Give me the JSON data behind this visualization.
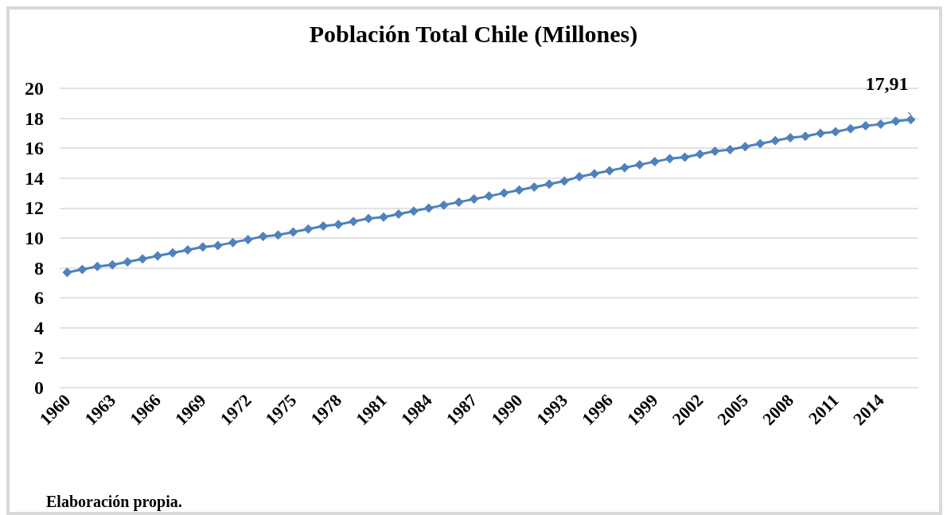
{
  "chart_data": {
    "type": "line",
    "title": "Población Total Chile (Millones)",
    "categories": [
      "1960",
      null,
      null,
      "1963",
      null,
      null,
      "1966",
      null,
      null,
      "1969",
      null,
      null,
      "1972",
      null,
      null,
      "1975",
      null,
      null,
      "1978",
      null,
      null,
      "1981",
      null,
      null,
      "1984",
      null,
      null,
      "1987",
      null,
      null,
      "1990",
      null,
      null,
      "1993",
      null,
      null,
      "1996",
      null,
      null,
      "1999",
      null,
      null,
      "2002",
      null,
      null,
      "2005",
      null,
      null,
      "2008",
      null,
      null,
      "2011",
      null,
      null,
      "2014",
      null,
      null
    ],
    "series": [
      {
        "color": "#4f81bd",
        "values": [
          7.7,
          7.9,
          8.1,
          8.2,
          8.4,
          8.6,
          8.8,
          9.0,
          9.2,
          9.4,
          9.5,
          9.7,
          9.9,
          10.1,
          10.2,
          10.4,
          10.6,
          10.8,
          10.9,
          11.1,
          11.3,
          11.4,
          11.6,
          11.8,
          12.0,
          12.2,
          12.4,
          12.6,
          12.8,
          13.0,
          13.2,
          13.4,
          13.6,
          13.8,
          14.1,
          14.3,
          14.5,
          14.7,
          14.9,
          15.1,
          15.3,
          15.4,
          15.6,
          15.8,
          15.9,
          16.1,
          16.3,
          16.5,
          16.7,
          16.8,
          17.0,
          17.1,
          17.3,
          17.5,
          17.6,
          17.8,
          17.91
        ],
        "value_labels": [
          null,
          null,
          null,
          null,
          null,
          null,
          null,
          null,
          null,
          null,
          null,
          null,
          null,
          null,
          null,
          null,
          null,
          null,
          null,
          null,
          null,
          null,
          null,
          null,
          null,
          null,
          null,
          null,
          null,
          null,
          null,
          null,
          null,
          null,
          null,
          null,
          null,
          null,
          null,
          null,
          null,
          null,
          null,
          null,
          null,
          null,
          null,
          null,
          null,
          null,
          null,
          null,
          null,
          null,
          null,
          null,
          "17,91"
        ]
      }
    ],
    "ylim": [
      0,
      20
    ],
    "yticks": [
      0,
      2,
      4,
      6,
      8,
      10,
      12,
      14,
      16,
      18,
      20
    ],
    "grid": "y",
    "marker": "diamond",
    "line_style": "solid",
    "annotations": [
      "Elaboración propia."
    ]
  }
}
